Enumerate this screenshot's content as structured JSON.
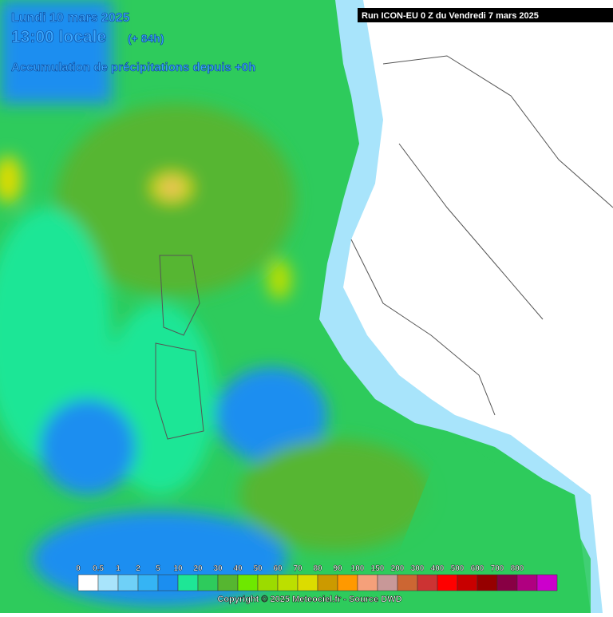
{
  "header": {
    "date": "Lundi 10 mars 2025",
    "time": "13:00 locale",
    "lead": "(+ 84h)",
    "subtitle": "Accumulation de précipitations depuis +0h",
    "run": "Run ICON-EU 0 Z du Vendredi 7 mars 2025"
  },
  "legend": {
    "labels": [
      0,
      0.5,
      1,
      2,
      5,
      10,
      20,
      30,
      40,
      50,
      60,
      70,
      80,
      90,
      100,
      150,
      200,
      300,
      400,
      500,
      600,
      700,
      800
    ],
    "colors": [
      "#ffffff",
      "#a8e4fb",
      "#6fd0f7",
      "#35b4f4",
      "#1b8ef0",
      "#1ee696",
      "#2ecb5c",
      "#56b630",
      "#6ee800",
      "#9cdb00",
      "#bcdf00",
      "#dcdc00",
      "#cc9a00",
      "#ff9900",
      "#f5a07a",
      "#c89898",
      "#cc6633",
      "#cc3333",
      "#ff0000",
      "#c80000",
      "#960000",
      "#880044",
      "#b00080",
      "#cc00cc"
    ]
  },
  "footer": "Copyright © 2025 Meteociel.fr - Source DWD"
}
